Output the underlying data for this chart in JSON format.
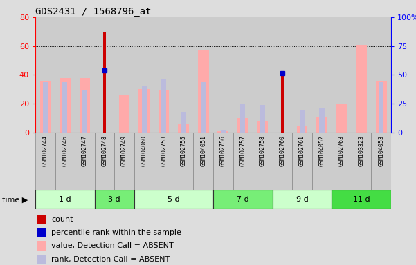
{
  "title": "GDS2431 / 1568796_at",
  "samples": [
    "GSM102744",
    "GSM102746",
    "GSM102747",
    "GSM102748",
    "GSM102749",
    "GSM104060",
    "GSM102753",
    "GSM102755",
    "GSM104051",
    "GSM102756",
    "GSM102757",
    "GSM102758",
    "GSM102760",
    "GSM102761",
    "GSM104052",
    "GSM102763",
    "GSM103323",
    "GSM104053"
  ],
  "time_groups": [
    {
      "label": "1 d",
      "start": 0,
      "end": 3,
      "color": "#ccffcc"
    },
    {
      "label": "3 d",
      "start": 3,
      "end": 5,
      "color": "#77ee77"
    },
    {
      "label": "5 d",
      "start": 5,
      "end": 9,
      "color": "#ccffcc"
    },
    {
      "label": "7 d",
      "start": 9,
      "end": 12,
      "color": "#77ee77"
    },
    {
      "label": "9 d",
      "start": 12,
      "end": 15,
      "color": "#ccffcc"
    },
    {
      "label": "11 d",
      "start": 15,
      "end": 18,
      "color": "#44dd44"
    }
  ],
  "count_values": [
    0,
    0,
    0,
    70,
    0,
    0,
    0,
    0,
    0,
    0,
    0,
    0,
    40,
    0,
    0,
    0,
    0,
    0
  ],
  "percentile_rank_values": [
    0,
    0,
    0,
    43,
    0,
    0,
    0,
    0,
    0,
    0,
    0,
    0,
    41,
    0,
    0,
    0,
    0,
    0
  ],
  "absent_value_values": [
    36,
    38,
    38,
    0,
    26,
    30,
    29,
    6,
    57,
    1,
    10,
    8,
    0,
    5,
    11,
    20,
    61,
    36
  ],
  "absent_rank_values": [
    35,
    35,
    29,
    0,
    0,
    32,
    37,
    14,
    35,
    2,
    20,
    19,
    0,
    16,
    17,
    0,
    0,
    35
  ],
  "ylim_left": [
    0,
    80
  ],
  "ylim_right": [
    0,
    100
  ],
  "yticks_left": [
    0,
    20,
    40,
    60,
    80
  ],
  "yticks_right": [
    0,
    25,
    50,
    75,
    100
  ],
  "color_count": "#cc0000",
  "color_percentile": "#0000cc",
  "color_absent_value": "#ffaaaa",
  "color_absent_rank": "#bbbbdd",
  "background_color": "#dddddd",
  "plot_bg": "#ffffff",
  "col_bg": "#cccccc",
  "legend_labels": [
    "count",
    "percentile rank within the sample",
    "value, Detection Call = ABSENT",
    "rank, Detection Call = ABSENT"
  ],
  "legend_colors": [
    "#cc0000",
    "#0000cc",
    "#ffaaaa",
    "#bbbbdd"
  ]
}
